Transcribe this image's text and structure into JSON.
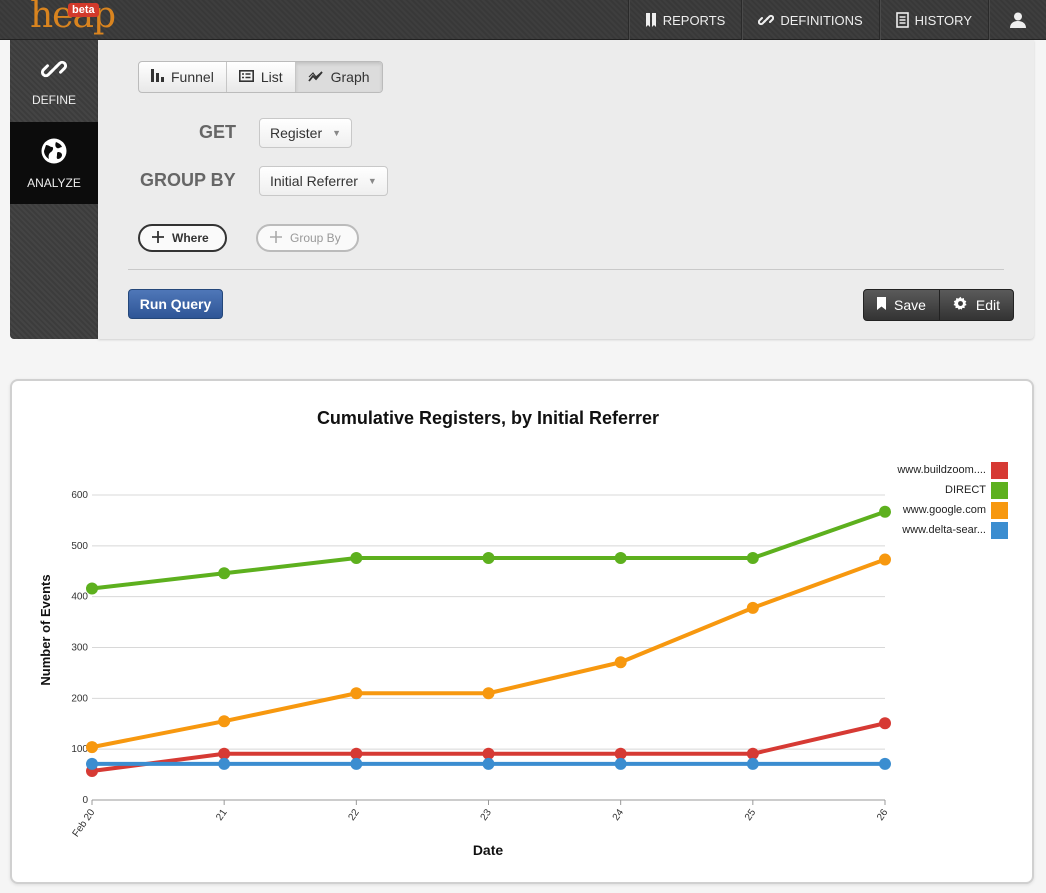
{
  "app": {
    "logo_text": "heap",
    "logo_badge": "beta"
  },
  "nav": {
    "reports": "REPORTS",
    "definitions": "DEFINITIONS",
    "history": "HISTORY"
  },
  "sidebar": {
    "define": "DEFINE",
    "analyze": "ANALYZE"
  },
  "view_toggle": {
    "funnel": "Funnel",
    "list": "List",
    "graph": "Graph",
    "active": "Graph"
  },
  "query": {
    "get_label": "GET",
    "get_value": "Register",
    "group_by_label": "GROUP BY",
    "group_by_value": "Initial Referrer",
    "where_button": "Where",
    "group_by_button": "Group By",
    "run_button": "Run Query",
    "save_button": "Save",
    "edit_button": "Edit"
  },
  "chart_data": {
    "type": "line",
    "title": "Cumulative Registers, by Initial Referrer",
    "xlabel": "Date",
    "ylabel": "Number of Events",
    "categories": [
      "Feb 20",
      "21",
      "22",
      "23",
      "24",
      "25",
      "26"
    ],
    "ylim": [
      0,
      600
    ],
    "yticks": [
      0,
      100,
      200,
      300,
      400,
      500,
      600
    ],
    "grid": true,
    "legend_position": "top-right",
    "series": [
      {
        "name": "www.buildzoom....",
        "color": "#d63a34",
        "values": [
          57,
          91,
          91,
          91,
          91,
          91,
          151
        ]
      },
      {
        "name": "DIRECT",
        "color": "#5db01e",
        "values": [
          416,
          446,
          476,
          476,
          476,
          476,
          567
        ]
      },
      {
        "name": "www.google.com",
        "color": "#f7980f",
        "values": [
          104,
          155,
          210,
          210,
          271,
          378,
          473
        ]
      },
      {
        "name": "www.delta-sear...",
        "color": "#3b8dd0",
        "values": [
          71,
          71,
          71,
          71,
          71,
          71,
          71
        ]
      }
    ]
  }
}
